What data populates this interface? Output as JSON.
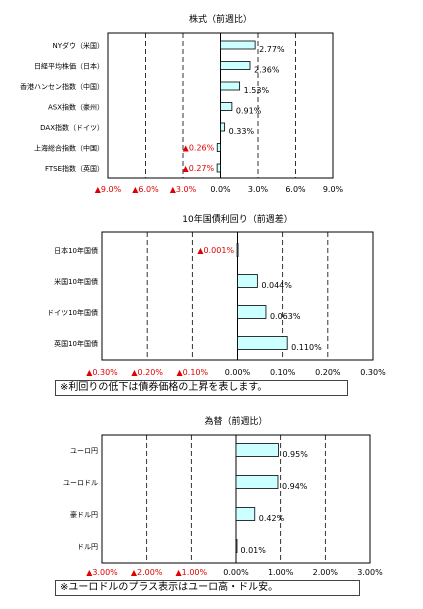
{
  "chart_data": [
    {
      "type": "bar",
      "orientation": "horizontal",
      "title": "株式（前週比）",
      "categories": [
        "NYダウ（米国）",
        "日経平均株価（日本）",
        "香港ハンセン指数（中国）",
        "ASX指数（豪州）",
        "DAX指数（ドイツ）",
        "上海総合指数（中国）",
        "FTSE指数（英国）"
      ],
      "values": [
        2.77,
        2.36,
        1.53,
        0.91,
        0.33,
        -0.26,
        -0.27
      ],
      "value_labels": [
        "2.77%",
        "2.36%",
        "1.53%",
        "0.91%",
        "0.33%",
        "▲0.26%",
        "▲0.27%"
      ],
      "xlim": [
        -9,
        9
      ],
      "ticks": [
        -9,
        -6,
        -3,
        0,
        3,
        6,
        9
      ],
      "tick_labels": [
        "▲9.0%",
        "▲6.0%",
        "▲3.0%",
        "0.0%",
        "3.0%",
        "6.0%",
        "9.0%"
      ],
      "grid": "dashed-vertical",
      "note": ""
    },
    {
      "type": "bar",
      "orientation": "horizontal",
      "title": "10年国債利回り（前週差）",
      "categories": [
        "日本10年国債",
        "米国10年国債",
        "ドイツ10年国債",
        "英国10年国債"
      ],
      "values": [
        -0.001,
        0.044,
        0.063,
        0.11
      ],
      "value_labels": [
        "▲0.001%",
        "0.044%",
        "0.063%",
        "0.110%"
      ],
      "xlim": [
        -0.3,
        0.3
      ],
      "ticks": [
        -0.3,
        -0.2,
        -0.1,
        0,
        0.1,
        0.2,
        0.3
      ],
      "tick_labels": [
        "▲0.30%",
        "▲0.20%",
        "▲0.10%",
        "0.00%",
        "0.10%",
        "0.20%",
        "0.30%"
      ],
      "grid": "dashed-vertical",
      "note": "※利回りの低下は債券価格の上昇を表します。"
    },
    {
      "type": "bar",
      "orientation": "horizontal",
      "title": "為替（前週比）",
      "categories": [
        "ユーロ円",
        "ユーロドル",
        "豪ドル円",
        "ドル円"
      ],
      "values": [
        0.95,
        0.94,
        0.42,
        0.01
      ],
      "value_labels": [
        "0.95%",
        "0.94%",
        "0.42%",
        "0.01%"
      ],
      "xlim": [
        -3,
        3
      ],
      "ticks": [
        -3,
        -2,
        -1,
        0,
        1,
        2,
        3
      ],
      "tick_labels": [
        "▲3.00%",
        "▲2.00%",
        "▲1.00%",
        "0.00%",
        "1.00%",
        "2.00%",
        "3.00%"
      ],
      "grid": "dashed-vertical",
      "note": "※ユーロドルのプラス表示はユーロ高・ドル安。"
    }
  ],
  "colors": {
    "bar_fill": "#ccffff",
    "bar_stroke": "#000000",
    "negative_text": "#e00000",
    "grid": "#000000"
  }
}
